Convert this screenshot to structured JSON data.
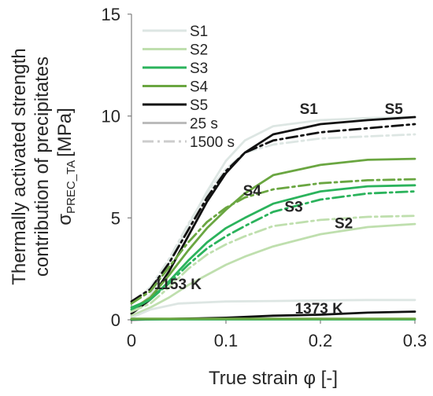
{
  "chart_data": {
    "type": "line",
    "xlabel": "True strain φ [-]",
    "ylabel_lines": [
      "Thermally activated strength",
      "contribution of precipitates"
    ],
    "ylabel_symbol": "σ",
    "ylabel_subscript": "PREC_TA",
    "ylabel_unit": "[MPa]",
    "xlim": [
      0,
      0.3
    ],
    "ylim": [
      0,
      15
    ],
    "x_ticks": [
      "0",
      "0.1",
      "0.2",
      "0.3"
    ],
    "y_ticks": [
      "0",
      "5",
      "10",
      "15"
    ],
    "grid": false,
    "legend_position": "top-left",
    "legend": [
      {
        "label": "S1",
        "color": "#dde6e3",
        "style": "solid"
      },
      {
        "label": "S2",
        "color": "#bfdfae",
        "style": "solid"
      },
      {
        "label": "S3",
        "color": "#2bb35c",
        "style": "solid"
      },
      {
        "label": "S4",
        "color": "#6aa641",
        "style": "solid"
      },
      {
        "label": "S5",
        "color": "#111111",
        "style": "solid"
      },
      {
        "label": "25 s",
        "color": "#bbbbbb",
        "style": "solid"
      },
      {
        "label": "1500 s",
        "color": "#cccccc",
        "style": "dashdot"
      }
    ],
    "annotations": [
      {
        "text": "S1",
        "x": 0.178,
        "y": 10.1
      },
      {
        "text": "S5",
        "x": 0.268,
        "y": 10.1
      },
      {
        "text": "S4",
        "x": 0.118,
        "y": 6.1
      },
      {
        "text": "S3",
        "x": 0.162,
        "y": 5.3
      },
      {
        "text": "S2",
        "x": 0.215,
        "y": 4.5
      },
      {
        "text": "1153 K",
        "x": 0.024,
        "y": 1.5
      },
      {
        "text": "1373 K",
        "x": 0.173,
        "y": 0.3
      }
    ],
    "series": [
      {
        "group": "S1",
        "time": "25 s",
        "color": "#dde6e3",
        "style": "solid",
        "x": [
          0,
          0.02,
          0.04,
          0.06,
          0.08,
          0.1,
          0.12,
          0.15,
          0.2,
          0.25,
          0.3
        ],
        "y": [
          0.3,
          1.2,
          2.8,
          4.6,
          6.3,
          7.8,
          8.8,
          9.5,
          9.8,
          9.9,
          9.95
        ]
      },
      {
        "group": "S1",
        "time": "1500 s",
        "color": "#dde6e3",
        "style": "dashdot",
        "x": [
          0,
          0.02,
          0.04,
          0.06,
          0.08,
          0.1,
          0.12,
          0.15,
          0.2,
          0.25,
          0.3
        ],
        "y": [
          0.8,
          1.6,
          3.0,
          4.7,
          6.2,
          7.4,
          8.2,
          8.6,
          8.9,
          9.0,
          9.1
        ]
      },
      {
        "group": "S5",
        "time": "25 s",
        "color": "#111111",
        "style": "solid",
        "x": [
          0,
          0.02,
          0.04,
          0.06,
          0.08,
          0.1,
          0.12,
          0.15,
          0.2,
          0.25,
          0.3
        ],
        "y": [
          0.3,
          1.0,
          2.4,
          4.1,
          5.8,
          7.2,
          8.2,
          9.1,
          9.6,
          9.8,
          9.95
        ]
      },
      {
        "group": "S5",
        "time": "1500 s",
        "color": "#111111",
        "style": "dashdot",
        "x": [
          0,
          0.02,
          0.04,
          0.06,
          0.08,
          0.1,
          0.12,
          0.15,
          0.2,
          0.25,
          0.3
        ],
        "y": [
          0.9,
          1.5,
          2.8,
          4.4,
          6.0,
          7.3,
          8.2,
          8.8,
          9.2,
          9.4,
          9.6
        ]
      },
      {
        "group": "S4",
        "time": "25 s",
        "color": "#6aa641",
        "style": "solid",
        "x": [
          0,
          0.02,
          0.04,
          0.06,
          0.08,
          0.1,
          0.12,
          0.15,
          0.2,
          0.25,
          0.3
        ],
        "y": [
          0.5,
          1.1,
          2.2,
          3.4,
          4.5,
          5.4,
          6.2,
          7.1,
          7.6,
          7.85,
          7.9
        ]
      },
      {
        "group": "S4",
        "time": "1500 s",
        "color": "#6aa641",
        "style": "dashdot",
        "x": [
          0,
          0.02,
          0.04,
          0.06,
          0.08,
          0.1,
          0.12,
          0.15,
          0.2,
          0.25,
          0.3
        ],
        "y": [
          0.8,
          1.4,
          2.6,
          3.8,
          4.8,
          5.5,
          6.0,
          6.4,
          6.7,
          6.85,
          6.9
        ]
      },
      {
        "group": "S3",
        "time": "25 s",
        "color": "#2bb35c",
        "style": "solid",
        "x": [
          0,
          0.02,
          0.04,
          0.06,
          0.08,
          0.1,
          0.12,
          0.15,
          0.2,
          0.25,
          0.3
        ],
        "y": [
          0.5,
          1.0,
          1.9,
          2.9,
          3.8,
          4.5,
          5.0,
          5.7,
          6.3,
          6.55,
          6.6
        ]
      },
      {
        "group": "S3",
        "time": "1500 s",
        "color": "#2bb35c",
        "style": "dashdot",
        "x": [
          0,
          0.02,
          0.04,
          0.06,
          0.08,
          0.1,
          0.12,
          0.15,
          0.2,
          0.25,
          0.3
        ],
        "y": [
          0.6,
          1.0,
          1.8,
          2.7,
          3.5,
          4.1,
          4.6,
          5.3,
          5.9,
          6.2,
          6.3
        ]
      },
      {
        "group": "S2",
        "time": "25 s",
        "color": "#bfdfae",
        "style": "solid",
        "x": [
          0,
          0.02,
          0.04,
          0.06,
          0.08,
          0.1,
          0.12,
          0.15,
          0.2,
          0.25,
          0.3
        ],
        "y": [
          0.2,
          0.6,
          1.1,
          1.7,
          2.2,
          2.7,
          3.1,
          3.6,
          4.2,
          4.55,
          4.7
        ]
      },
      {
        "group": "S2",
        "time": "1500 s",
        "color": "#bfdfae",
        "style": "dashdot",
        "x": [
          0,
          0.02,
          0.04,
          0.06,
          0.08,
          0.1,
          0.12,
          0.15,
          0.2,
          0.25,
          0.3
        ],
        "y": [
          0.4,
          0.8,
          1.6,
          2.5,
          3.2,
          3.7,
          4.1,
          4.6,
          4.9,
          5.05,
          5.1
        ]
      },
      {
        "group": "S1",
        "time": "25 s",
        "temp": "1373 K",
        "color": "#dde6e3",
        "style": "solid",
        "x": [
          0,
          0.02,
          0.05,
          0.1,
          0.15,
          0.2,
          0.25,
          0.3
        ],
        "y": [
          0.1,
          0.5,
          0.8,
          0.9,
          0.92,
          0.95,
          0.97,
          0.97
        ]
      },
      {
        "group": "S5",
        "time": "25 s",
        "temp": "1373 K",
        "color": "#111111",
        "style": "solid",
        "x": [
          0,
          0.05,
          0.1,
          0.15,
          0.2,
          0.25,
          0.3
        ],
        "y": [
          0.0,
          0.05,
          0.1,
          0.2,
          0.25,
          0.35,
          0.4
        ]
      },
      {
        "group": "S3",
        "time": "25 s",
        "temp": "1373 K",
        "color": "#2bb35c",
        "style": "solid",
        "x": [
          0,
          0.1,
          0.2,
          0.3
        ],
        "y": [
          0.02,
          0.02,
          0.02,
          0.02
        ]
      },
      {
        "group": "S4",
        "time": "25 s",
        "temp": "1373 K",
        "color": "#6aa641",
        "style": "solid",
        "x": [
          0,
          0.1,
          0.2,
          0.3
        ],
        "y": [
          0.05,
          0.05,
          0.05,
          0.05
        ]
      }
    ]
  }
}
